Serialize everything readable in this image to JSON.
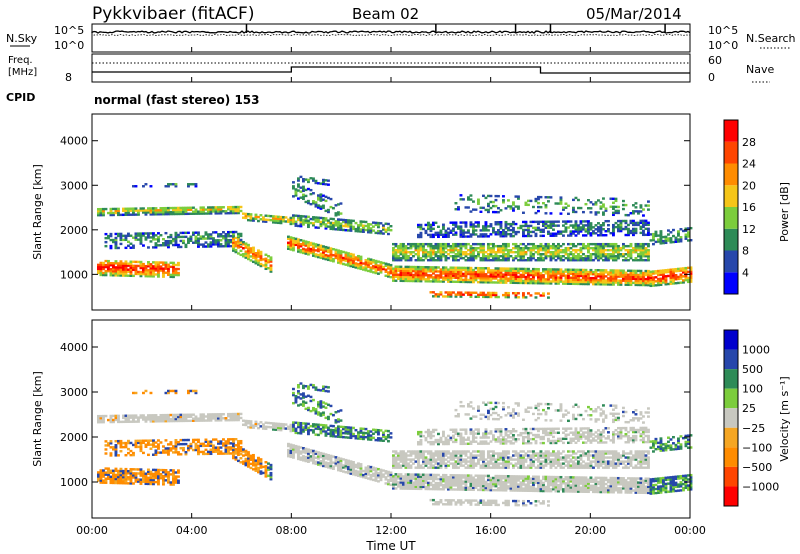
{
  "header": {
    "station": "Pykkvibaer (fitACF)",
    "beam": "Beam 02",
    "date": "05/Mar/2014"
  },
  "noise_panel": {
    "left_label": "N.Sky",
    "left_ticks": [
      "10^5",
      "10^0"
    ],
    "right_label": "N.Search",
    "right_ticks": [
      "10^5",
      "10^0"
    ]
  },
  "freq_panel": {
    "left_label_1": "Freq.",
    "left_label_2": "[MHz]",
    "left_tick": "8",
    "right_label": "Nave",
    "right_ticks": [
      "60",
      "0"
    ]
  },
  "cpid": {
    "label": "CPID",
    "mode_text": "normal (fast stereo) 153"
  },
  "colors": {
    "power_scale": [
      "#0000ff",
      "#2747ab",
      "#2e8b57",
      "#7ccd3c",
      "#f5c518",
      "#ff8c00",
      "#ff4500",
      "#ff0000"
    ],
    "velocity_scale": [
      "#ff0000",
      "#ff4500",
      "#ff8c00",
      "#f5a623",
      "#c8c8c0",
      "#7ccd3c",
      "#2e8b57",
      "#2747ab",
      "#0000cd"
    ],
    "ground_scatter": "#c8c8c0"
  },
  "chart_data": [
    {
      "type": "heatmap",
      "panel": "power",
      "ylabel": "Slant Range [km]",
      "ylim": [
        200,
        4600
      ],
      "xlim_hours": [
        0,
        24
      ],
      "y_ticks": [
        "1000",
        "2000",
        "3000",
        "4000"
      ],
      "colorbar_label": "Power [dB]",
      "colorbar_ticks": [
        "4",
        "8",
        "12",
        "16",
        "20",
        "24",
        "28"
      ],
      "colorbar_range": [
        0,
        32
      ]
    },
    {
      "type": "heatmap",
      "panel": "velocity",
      "ylabel": "Slant Range [km]",
      "ylim": [
        200,
        4600
      ],
      "xlim_hours": [
        0,
        24
      ],
      "y_ticks": [
        "1000",
        "2000",
        "3000",
        "4000"
      ],
      "colorbar_label": "Velocity [m s⁻¹]",
      "colorbar_ticks": [
        "1000",
        "500",
        "100",
        "25",
        "−25",
        "−100",
        "−500",
        "−1000"
      ]
    }
  ],
  "x_axis": {
    "label": "Time UT",
    "ticks": [
      "00:00",
      "04:00",
      "08:00",
      "12:00",
      "16:00",
      "20:00",
      "00:00"
    ]
  }
}
